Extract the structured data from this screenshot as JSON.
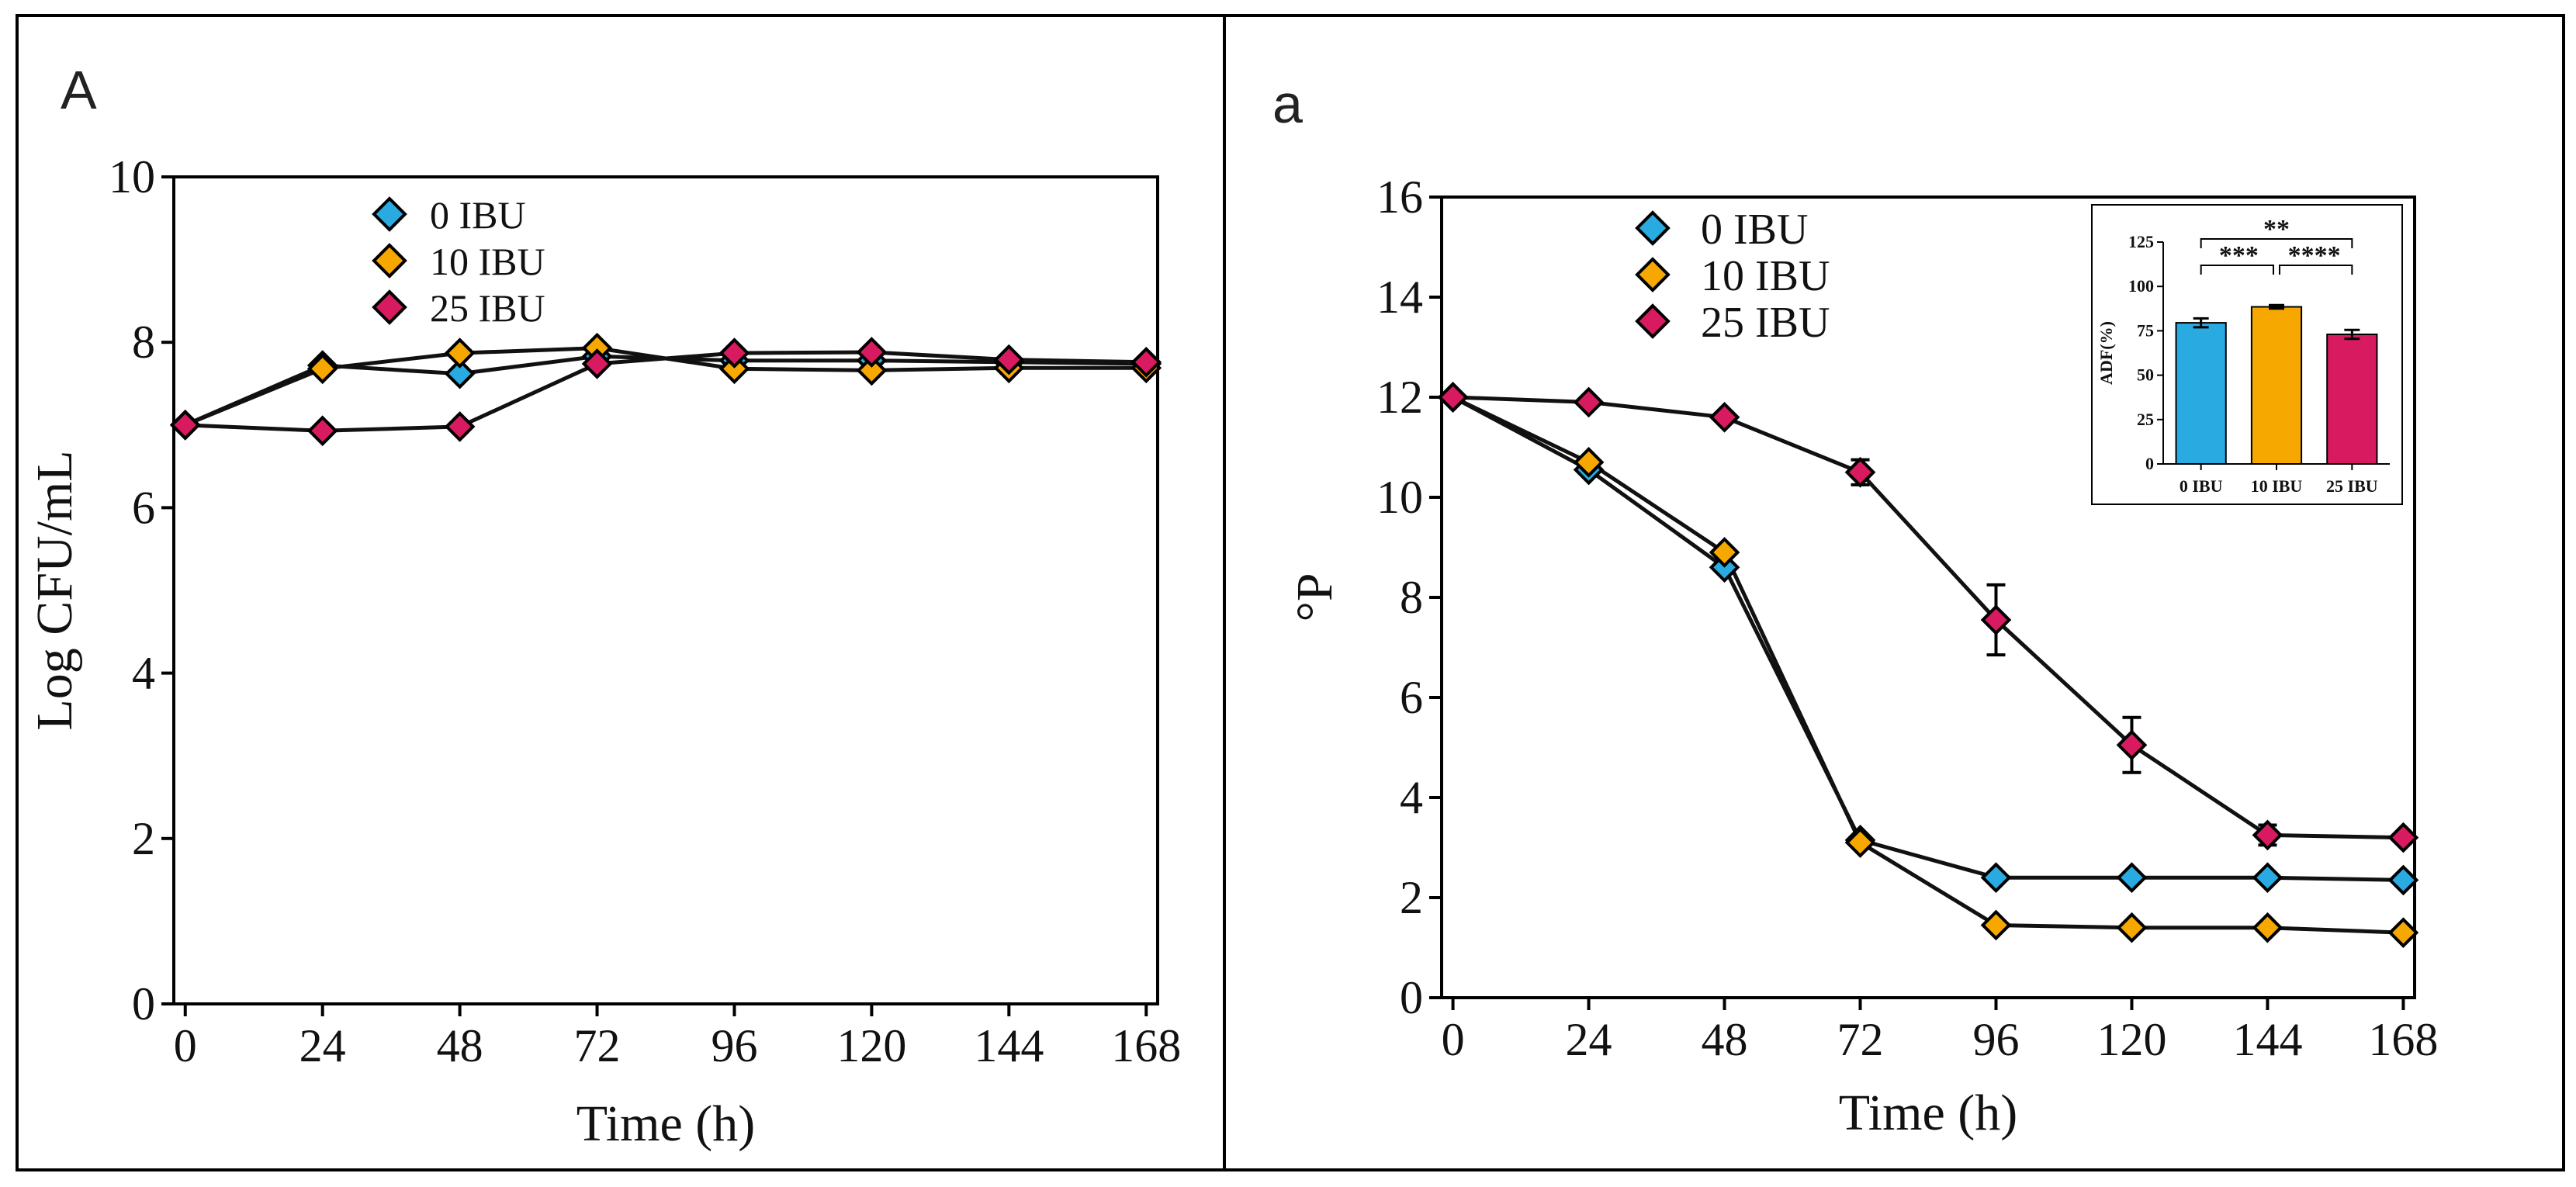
{
  "panels": {
    "left_letter": "A",
    "right_letter": "a"
  },
  "colors": {
    "ibu0": "#29ABE2",
    "ibu10": "#F7A800",
    "ibu25": "#D81B60",
    "line": "#111111"
  },
  "chart_data": [
    {
      "type": "line",
      "id": "left",
      "title": "",
      "xlabel": "Time (h)",
      "ylabel": "Log CFU/mL",
      "x": [
        0,
        24,
        48,
        72,
        96,
        120,
        144,
        168
      ],
      "xticks": [
        "0",
        "24",
        "48",
        "72",
        "96",
        "120",
        "144",
        "168"
      ],
      "yticks": [
        "0",
        "2",
        "4",
        "6",
        "8",
        "10"
      ],
      "ylim": [
        0,
        10
      ],
      "xlim": [
        -2,
        170
      ],
      "legend_position": "top-left",
      "series": [
        {
          "name": "0 IBU",
          "color_key": "ibu0",
          "values": [
            7.0,
            7.72,
            7.62,
            7.83,
            7.78,
            7.78,
            7.76,
            7.74
          ]
        },
        {
          "name": "10 IBU",
          "color_key": "ibu10",
          "values": [
            7.0,
            7.68,
            7.87,
            7.93,
            7.68,
            7.66,
            7.69,
            7.69
          ]
        },
        {
          "name": "25 IBU",
          "color_key": "ibu25",
          "values": [
            7.0,
            6.93,
            6.98,
            7.74,
            7.87,
            7.88,
            7.79,
            7.76
          ]
        }
      ]
    },
    {
      "type": "line",
      "id": "right",
      "title": "",
      "xlabel": "Time (h)",
      "ylabel": "°P",
      "x": [
        0,
        24,
        48,
        72,
        96,
        120,
        144,
        168
      ],
      "xticks": [
        "0",
        "24",
        "48",
        "72",
        "96",
        "120",
        "144",
        "168"
      ],
      "yticks": [
        "0",
        "2",
        "4",
        "6",
        "8",
        "10",
        "12",
        "14",
        "16"
      ],
      "ylim": [
        0,
        16
      ],
      "xlim": [
        -2,
        170
      ],
      "legend_position": "top-left",
      "series": [
        {
          "name": "0 IBU",
          "color_key": "ibu0",
          "values": [
            12.0,
            10.55,
            8.6,
            3.15,
            2.4,
            2.4,
            2.4,
            2.35
          ],
          "errors": [
            0,
            0,
            0,
            0,
            0,
            0,
            0,
            0
          ]
        },
        {
          "name": "10 IBU",
          "color_key": "ibu10",
          "values": [
            12.0,
            10.7,
            8.9,
            3.1,
            1.45,
            1.4,
            1.4,
            1.3
          ],
          "errors": [
            0,
            0,
            0,
            0,
            0,
            0,
            0,
            0
          ]
        },
        {
          "name": "25 IBU",
          "color_key": "ibu25",
          "values": [
            12.0,
            11.9,
            11.6,
            10.5,
            7.55,
            5.05,
            3.25,
            3.2
          ],
          "errors": [
            0,
            0,
            0,
            0.25,
            0.7,
            0.55,
            0.2,
            0
          ]
        }
      ]
    },
    {
      "type": "bar",
      "id": "inset",
      "title": "",
      "xlabel": "",
      "ylabel": "ADF(%)",
      "categories": [
        "0 IBU",
        "10 IBU",
        "25 IBU"
      ],
      "color_keys": [
        "ibu0",
        "ibu10",
        "ibu25"
      ],
      "values": [
        79.5,
        88.5,
        73.0
      ],
      "errors": [
        2.5,
        1.0,
        2.5
      ],
      "yticks": [
        "0",
        "25",
        "50",
        "75",
        "100",
        "125"
      ],
      "ylim": [
        0,
        125
      ],
      "significance": [
        {
          "label": "**",
          "from": 0,
          "to": 2
        },
        {
          "label": "***",
          "from": 0,
          "to": 1
        },
        {
          "label": "****",
          "from": 1,
          "to": 2
        }
      ]
    }
  ]
}
